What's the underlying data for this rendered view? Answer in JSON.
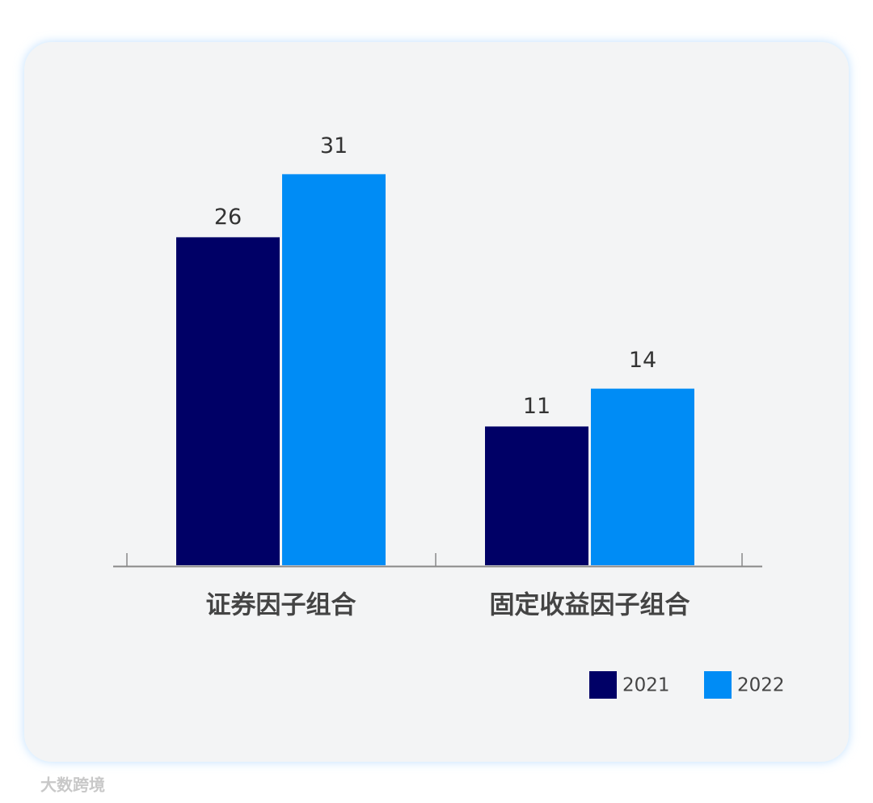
{
  "chart_data": {
    "type": "bar",
    "categories": [
      "证券因子组合",
      "固定收益因子组合"
    ],
    "series": [
      {
        "name": "2021",
        "color": "#000066",
        "values": [
          26,
          11
        ]
      },
      {
        "name": "2022",
        "color": "#008cf5",
        "values": [
          31,
          14
        ]
      }
    ]
  },
  "watermark": "大数跨境"
}
